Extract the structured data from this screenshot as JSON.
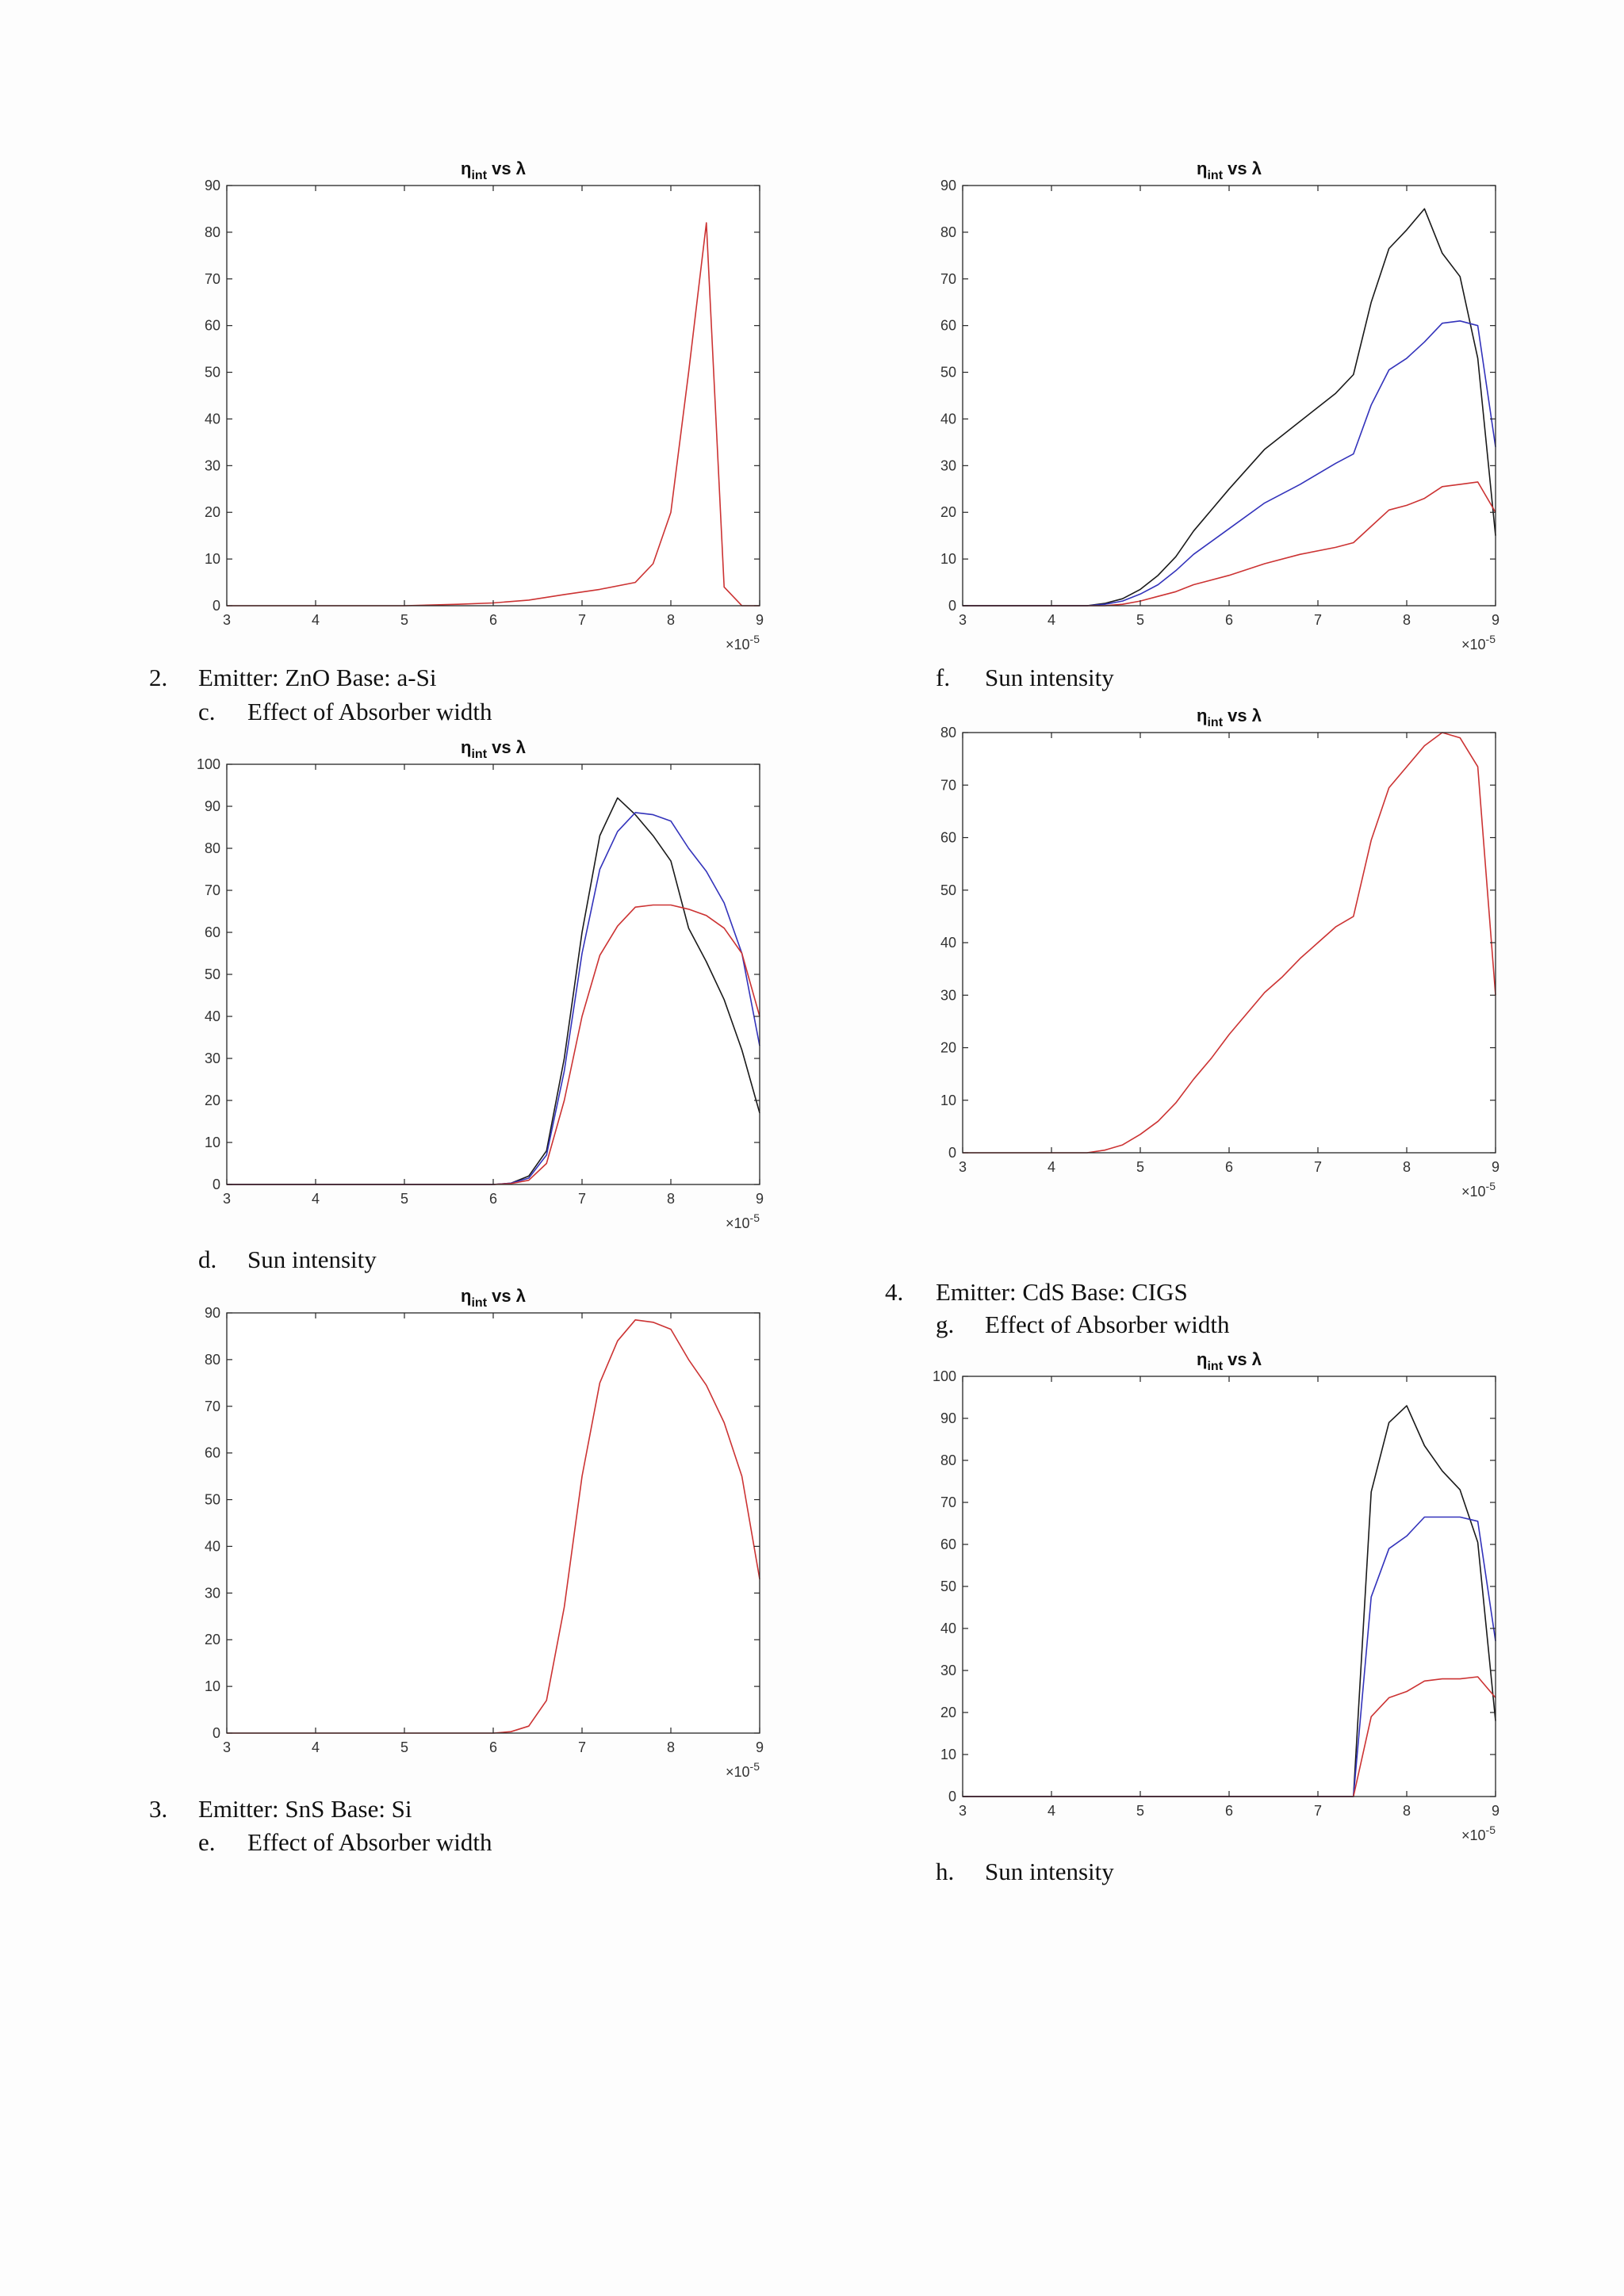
{
  "captions": {
    "item2": {
      "num": "2.",
      "text": "Emitter:  ZnO Base: a-Si"
    },
    "item2c": {
      "num": "c.",
      "text": "Effect of Absorber width"
    },
    "item2d": {
      "num": "d.",
      "text": "Sun intensity"
    },
    "item3": {
      "num": "3.",
      "text": "Emitter:  SnS Base: Si"
    },
    "item3e": {
      "num": "e.",
      "text": "Effect of Absorber width"
    },
    "itemf": {
      "num": "f.",
      "text": "Sun intensity"
    },
    "item4": {
      "num": "4.",
      "text": "Emitter:  CdS   Base: CIGS"
    },
    "item4g": {
      "num": "g.",
      "text": "Effect of Absorber width"
    },
    "itemh": {
      "num": "h.",
      "text": "Sun intensity"
    }
  },
  "colors": {
    "black": "#1a1a1a",
    "blue": "#3333bb",
    "red": "#cc3333",
    "axis": "#262626"
  },
  "chart_data": [
    {
      "type": "line",
      "title_main": "η",
      "title_sub": "int",
      "title_rest": " vs λ",
      "x_multiplier_base": "×10",
      "x_multiplier_exp": "-5",
      "xlim": [
        3,
        9
      ],
      "ylim": [
        0,
        90
      ],
      "xticks": [
        3,
        4,
        5,
        6,
        7,
        8,
        9
      ],
      "yticks": [
        0,
        10,
        20,
        30,
        40,
        50,
        60,
        70,
        80,
        90
      ],
      "grid": false,
      "series": [
        {
          "color": "red",
          "x": [
            3,
            4,
            5,
            5.6,
            6,
            6.4,
            6.8,
            7.2,
            7.6,
            7.8,
            8,
            8.2,
            8.4,
            8.6,
            8.8,
            9
          ],
          "y": [
            0,
            0,
            0,
            0.3,
            0.6,
            1.2,
            2.4,
            3.5,
            5,
            9,
            20,
            50,
            82,
            4,
            0,
            0
          ]
        }
      ]
    },
    {
      "type": "line",
      "title_main": "η",
      "title_sub": "int",
      "title_rest": " vs λ",
      "x_multiplier_base": "×10",
      "x_multiplier_exp": "-5",
      "xlim": [
        3,
        9
      ],
      "ylim": [
        0,
        90
      ],
      "xticks": [
        3,
        4,
        5,
        6,
        7,
        8,
        9
      ],
      "yticks": [
        0,
        10,
        20,
        30,
        40,
        50,
        60,
        70,
        80,
        90
      ],
      "grid": false,
      "series": [
        {
          "color": "black",
          "x": [
            3,
            4.4,
            4.6,
            4.8,
            5,
            5.2,
            5.4,
            5.6,
            6,
            6.4,
            6.8,
            7.2,
            7.4,
            7.6,
            7.8,
            8,
            8.2,
            8.4,
            8.6,
            8.8,
            9
          ],
          "y": [
            0,
            0,
            0.5,
            1.5,
            3.5,
            6.5,
            10.5,
            16,
            25,
            33.5,
            39.5,
            45.5,
            49.5,
            65,
            76.5,
            80.5,
            85,
            75.5,
            70.5,
            53,
            15
          ]
        },
        {
          "color": "blue",
          "x": [
            3,
            4.4,
            4.6,
            4.8,
            5,
            5.2,
            5.4,
            5.6,
            6,
            6.4,
            6.8,
            7.2,
            7.4,
            7.6,
            7.8,
            8,
            8.2,
            8.4,
            8.6,
            8.8,
            9
          ],
          "y": [
            0,
            0,
            0.3,
            1,
            2.5,
            4.5,
            7.5,
            11,
            16.5,
            22,
            26,
            30.5,
            32.5,
            43,
            50.5,
            53,
            56.5,
            60.5,
            61,
            60,
            34
          ]
        },
        {
          "color": "red",
          "x": [
            3,
            4.6,
            4.8,
            5,
            5.2,
            5.4,
            5.6,
            6,
            6.4,
            6.8,
            7.2,
            7.4,
            7.6,
            7.8,
            8,
            8.2,
            8.4,
            8.6,
            8.8,
            9
          ],
          "y": [
            0,
            0,
            0.3,
            1,
            2,
            3,
            4.5,
            6.5,
            9,
            11,
            12.5,
            13.5,
            17,
            20.5,
            21.5,
            23,
            25.5,
            26,
            26.5,
            20
          ]
        }
      ]
    },
    {
      "type": "line",
      "title_main": "η",
      "title_sub": "int",
      "title_rest": " vs λ",
      "x_multiplier_base": "×10",
      "x_multiplier_exp": "-5",
      "xlim": [
        3,
        9
      ],
      "ylim": [
        0,
        100
      ],
      "xticks": [
        3,
        4,
        5,
        6,
        7,
        8,
        9
      ],
      "yticks": [
        0,
        10,
        20,
        30,
        40,
        50,
        60,
        70,
        80,
        90,
        100
      ],
      "grid": false,
      "series": [
        {
          "color": "black",
          "x": [
            3,
            6,
            6.2,
            6.4,
            6.6,
            6.8,
            7,
            7.2,
            7.4,
            7.6,
            7.8,
            8,
            8.2,
            8.4,
            8.6,
            8.8,
            9
          ],
          "y": [
            0,
            0,
            0.3,
            2,
            8,
            30,
            60,
            83,
            92,
            88,
            83,
            77,
            61,
            53,
            44,
            32,
            17
          ]
        },
        {
          "color": "blue",
          "x": [
            3,
            6,
            6.2,
            6.4,
            6.6,
            6.8,
            7,
            7.2,
            7.4,
            7.6,
            7.8,
            8,
            8.2,
            8.4,
            8.6,
            8.8,
            9
          ],
          "y": [
            0,
            0,
            0.3,
            1.5,
            7,
            27,
            55,
            75,
            84,
            88.5,
            88,
            86.5,
            80,
            74.5,
            67,
            55,
            33
          ]
        },
        {
          "color": "red",
          "x": [
            3,
            6,
            6.2,
            6.4,
            6.6,
            6.8,
            7,
            7.2,
            7.4,
            7.6,
            7.8,
            8,
            8.2,
            8.4,
            8.6,
            8.8,
            9
          ],
          "y": [
            0,
            0,
            0.2,
            1,
            5,
            20,
            40,
            54.5,
            61.5,
            66,
            66.5,
            66.5,
            65.5,
            64,
            61,
            55,
            40
          ]
        }
      ]
    },
    {
      "type": "line",
      "title_main": "η",
      "title_sub": "int",
      "title_rest": " vs λ",
      "x_multiplier_base": "×10",
      "x_multiplier_exp": "-5",
      "xlim": [
        3,
        9
      ],
      "ylim": [
        0,
        80
      ],
      "xticks": [
        3,
        4,
        5,
        6,
        7,
        8,
        9
      ],
      "yticks": [
        0,
        10,
        20,
        30,
        40,
        50,
        60,
        70,
        80
      ],
      "grid": false,
      "series": [
        {
          "color": "red",
          "x": [
            3,
            4.4,
            4.6,
            4.8,
            5,
            5.2,
            5.4,
            5.6,
            5.8,
            6,
            6.2,
            6.4,
            6.6,
            6.8,
            7,
            7.2,
            7.4,
            7.6,
            7.8,
            8,
            8.2,
            8.4,
            8.6,
            8.8,
            9
          ],
          "y": [
            0,
            0,
            0.5,
            1.5,
            3.5,
            6,
            9.5,
            14,
            18,
            22.5,
            26.5,
            30.5,
            33.5,
            37,
            40,
            43,
            45,
            59.5,
            69.5,
            73.5,
            77.5,
            80,
            79,
            73.5,
            30
          ]
        }
      ]
    },
    {
      "type": "line",
      "title_main": "η",
      "title_sub": "int",
      "title_rest": " vs λ",
      "x_multiplier_base": "×10",
      "x_multiplier_exp": "-5",
      "xlim": [
        3,
        9
      ],
      "ylim": [
        0,
        90
      ],
      "xticks": [
        3,
        4,
        5,
        6,
        7,
        8,
        9
      ],
      "yticks": [
        0,
        10,
        20,
        30,
        40,
        50,
        60,
        70,
        80,
        90
      ],
      "grid": false,
      "series": [
        {
          "color": "red",
          "x": [
            3,
            6,
            6.2,
            6.4,
            6.6,
            6.8,
            7,
            7.2,
            7.4,
            7.6,
            7.8,
            8,
            8.2,
            8.4,
            8.6,
            8.8,
            9
          ],
          "y": [
            0,
            0,
            0.3,
            1.5,
            7,
            27,
            55,
            75,
            84,
            88.5,
            88,
            86.5,
            80,
            74.5,
            66.5,
            55,
            33
          ]
        }
      ]
    },
    {
      "type": "line",
      "title_main": "η",
      "title_sub": "int",
      "title_rest": " vs λ",
      "x_multiplier_base": "×10",
      "x_multiplier_exp": "-5",
      "xlim": [
        3,
        9
      ],
      "ylim": [
        0,
        100
      ],
      "xticks": [
        3,
        4,
        5,
        6,
        7,
        8,
        9
      ],
      "yticks": [
        0,
        10,
        20,
        30,
        40,
        50,
        60,
        70,
        80,
        90,
        100
      ],
      "grid": false,
      "series": [
        {
          "color": "black",
          "x": [
            3,
            7.4,
            7.6,
            7.8,
            8,
            8.2,
            8.4,
            8.6,
            8.8,
            9
          ],
          "y": [
            0,
            0,
            72.5,
            89,
            93,
            83.5,
            77.5,
            73,
            60.5,
            18
          ]
        },
        {
          "color": "blue",
          "x": [
            3,
            7.4,
            7.6,
            7.8,
            8,
            8.2,
            8.4,
            8.6,
            8.8,
            9
          ],
          "y": [
            0,
            0,
            47.5,
            59,
            62,
            66.5,
            66.5,
            66.5,
            65.5,
            37
          ]
        },
        {
          "color": "red",
          "x": [
            3,
            7.4,
            7.6,
            7.8,
            8,
            8.2,
            8.4,
            8.6,
            8.8,
            9
          ],
          "y": [
            0,
            0,
            19,
            23.5,
            25,
            27.5,
            28,
            28,
            28.5,
            23.5
          ]
        }
      ]
    }
  ]
}
